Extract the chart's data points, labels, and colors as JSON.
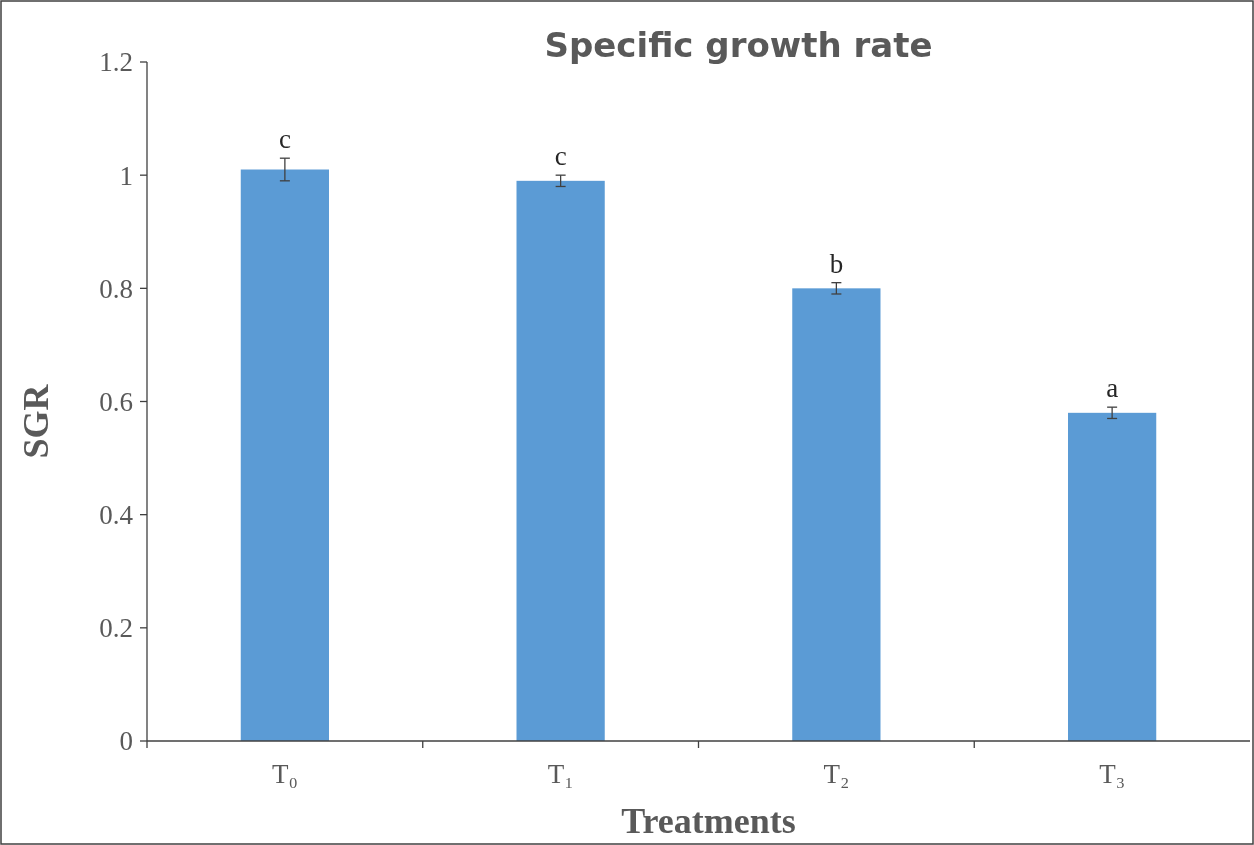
{
  "chart_data": {
    "type": "bar",
    "title": "Specific growth rate",
    "xlabel": "Treatments",
    "ylabel": "SGR",
    "categories": [
      "T₀",
      "T₁",
      "T₂",
      "T₃"
    ],
    "values": [
      1.01,
      0.99,
      0.8,
      0.58
    ],
    "color": "#5b9bd5",
    "errors": [
      0.02,
      0.01,
      0.01,
      0.01
    ],
    "ylim": [
      0,
      1.2
    ],
    "yticks": [
      0,
      0.2,
      0.4,
      0.6,
      0.8,
      1,
      1.2
    ],
    "grid": false,
    "annotations": [
      {
        "text": "c",
        "x": "T₀",
        "y": 1.03
      },
      {
        "text": "c",
        "x": "T₁",
        "y": 1.0
      },
      {
        "text": "b",
        "x": "T₂",
        "y": 0.81
      },
      {
        "text": "a",
        "x": "T₃",
        "y": 0.59
      }
    ]
  }
}
